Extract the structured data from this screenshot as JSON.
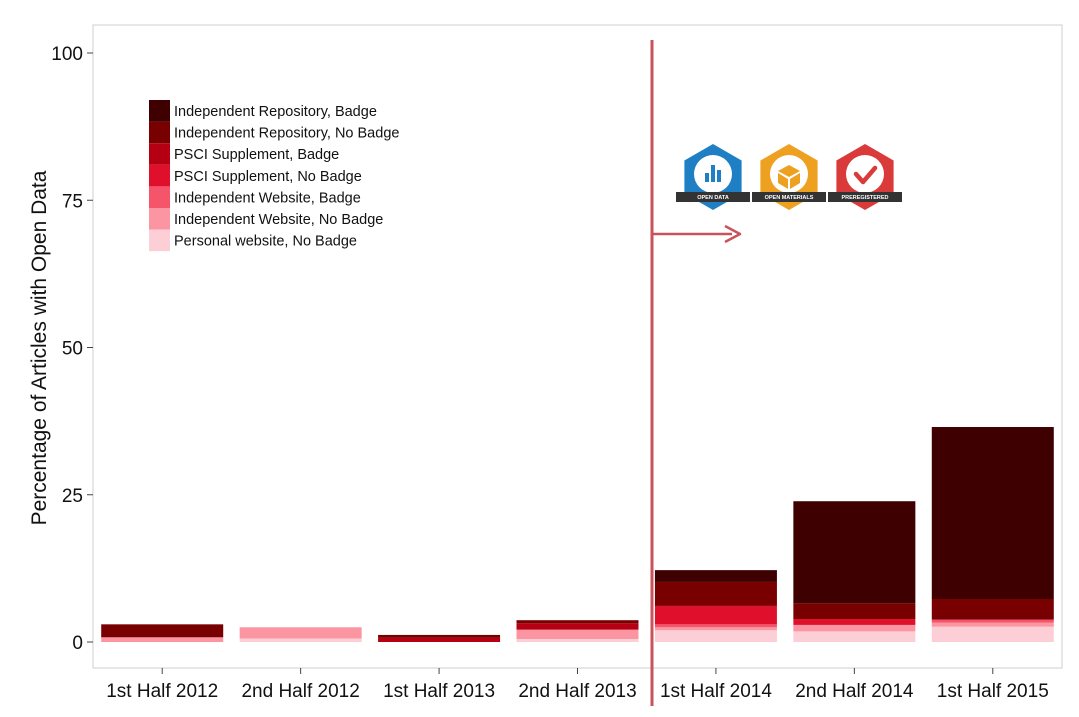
{
  "chart_data": {
    "type": "bar",
    "stacked": true,
    "ylabel": "Percentage of Articles with Open Data",
    "xlabel": "",
    "ylim": [
      -2.5,
      104
    ],
    "yticks": [
      0,
      25,
      50,
      75,
      100
    ],
    "categories": [
      "1st Half 2012",
      "2nd Half 2012",
      "1st Half 2013",
      "2nd Half 2013",
      "1st Half 2014",
      "2nd Half 2014",
      "1st Half 2015"
    ],
    "series": [
      {
        "name": "Personal website, No Badge",
        "color": "#fccfd6",
        "values": [
          0.0,
          0.6,
          0.0,
          0.5,
          2.0,
          1.8,
          2.6
        ]
      },
      {
        "name": "Independent Website, No Badge",
        "color": "#fb95a2",
        "values": [
          0.8,
          1.9,
          0.0,
          1.6,
          0.5,
          1.1,
          0.7
        ]
      },
      {
        "name": "Independent Website, Badge",
        "color": "#f5546a",
        "values": [
          0.0,
          0.0,
          0.0,
          0.0,
          0.5,
          0.0,
          0.5
        ]
      },
      {
        "name": "PSCI Supplement, No Badge",
        "color": "#e0102d",
        "values": [
          0.0,
          0.0,
          0.0,
          0.0,
          3.0,
          1.0,
          0.0
        ]
      },
      {
        "name": "PSCI Supplement, Badge",
        "color": "#b40012",
        "values": [
          0.0,
          0.0,
          0.7,
          1.1,
          0.2,
          0.0,
          0.0
        ]
      },
      {
        "name": "Independent Repository, No Badge",
        "color": "#780000",
        "values": [
          2.2,
          0.0,
          0.5,
          0.5,
          4.0,
          2.7,
          3.5
        ]
      },
      {
        "name": "Independent Repository, Badge",
        "color": "#3e0000",
        "values": [
          0.0,
          0.0,
          0.0,
          0.0,
          2.0,
          17.3,
          29.2
        ]
      }
    ],
    "legend_order": [
      "Independent Repository, Badge",
      "Independent Repository, No Badge",
      "PSCI Supplement, Badge",
      "PSCI Supplement, No Badge",
      "Independent Website, Badge",
      "Independent Website, No Badge",
      "Personal website, No Badge"
    ],
    "legend_position": "top-left",
    "grid": false,
    "annotations": {
      "vertical_line_between": [
        "2nd Half 2013",
        "1st Half 2014"
      ],
      "line_color": "#c8535a",
      "arrow": "right",
      "badges": [
        {
          "label": "OPEN DATA",
          "color": "#1f7fc4",
          "icon": "bar-chart-icon"
        },
        {
          "label": "OPEN MATERIALS",
          "color": "#eea021",
          "icon": "box-icon"
        },
        {
          "label": "PREREGISTERED",
          "color": "#db3a3a",
          "icon": "checkmark-icon"
        }
      ]
    }
  }
}
